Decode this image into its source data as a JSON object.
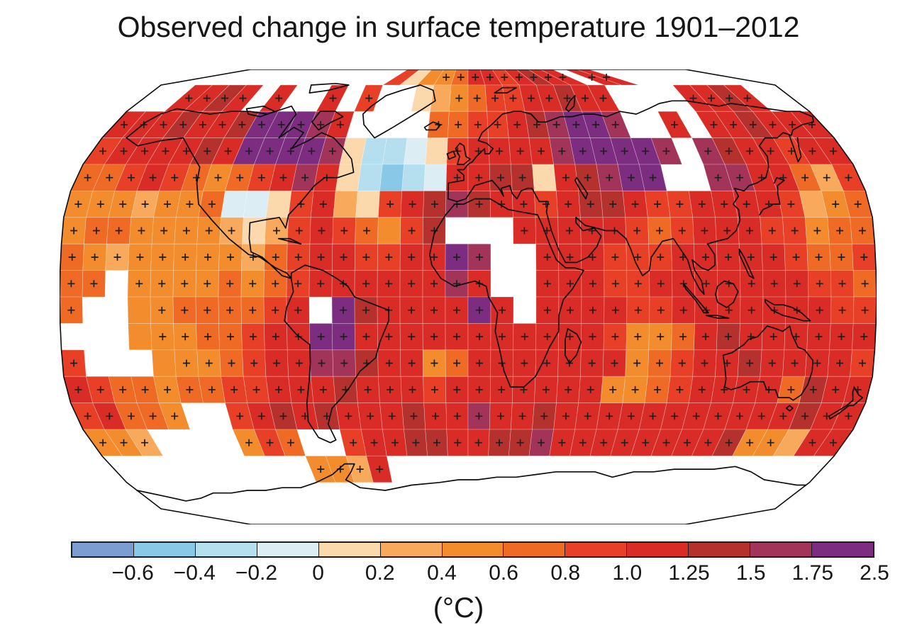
{
  "figure": {
    "title": "Observed change in surface temperature 1901–2012",
    "unit_label": "(°C)"
  },
  "colorbar": {
    "tick_labels": [
      "−0.6",
      "−0.4",
      "−0.2",
      "0",
      "0.2",
      "0.4",
      "0.6",
      "0.8",
      "1.0",
      "1.25",
      "1.5",
      "1.75",
      "2.5"
    ],
    "segment_colors": [
      "#7b9dd1",
      "#8ac8e8",
      "#b5dfee",
      "#dcedf4",
      "#fbd9ac",
      "#f8a95b",
      "#f28c2d",
      "#ef6a24",
      "#e84026",
      "#da2c26",
      "#b5312d",
      "#a23459",
      "#7c2d80"
    ],
    "border_color": "#1c1c1c"
  },
  "chart_data": {
    "type": "heatmap",
    "title": "Observed change in surface temperature 1901–2012",
    "unit": "°C",
    "projection": "robinson",
    "tick_values": [
      -0.6,
      -0.4,
      -0.2,
      0,
      0.2,
      0.4,
      0.6,
      0.8,
      1.0,
      1.25,
      1.5,
      1.75,
      2.5
    ],
    "bin_colors": [
      "#7b9dd1",
      "#8ac8e8",
      "#b5dfee",
      "#dcedf4",
      "#fbd9ac",
      "#f8a95b",
      "#f28c2d",
      "#ef6a24",
      "#e84026",
      "#da2c26",
      "#b5312d",
      "#a23459",
      "#7c2d80"
    ],
    "significance_marker": "+",
    "grid": {
      "legend": "rows from 90N to 90S, 10-degree cells from 180W to 180E; '.'=no data, hex digit 0-c = color bin index",
      "lon_start": -180,
      "lon_step": 10,
      "lat_start": 90,
      "lat_step": -10,
      "cells": [
        ".............846679989a99.99........",
        "..99a9.9..9.8..45678899a99....99a9..",
        "999a99acccb9....77889abccb..9.99a999",
        "89999a9ccccb4223489999bccccb.ba99899",
        "7789876789b94212399aa49abcc..bb99758",
        "6665667334895489aba9989aa98899998567",
        "6776666545898768a...9999987899988677",
        "76566666578998899cb..999888999998778",
        "77.66667678999999b9..999889999999887",
        "7..66777789.ca9999c9.999988999999988",
        "...66677899cc9999999999986679a999999",
        "8...6667899bba9967999999967899a99998",
        "987767788999a99989999999667899997a99",
        "89776..89a9a999a99b99a99999999999a99",
        "665....687..899aa99aab99999999a66599",
        "..........6659......................",
        "....................................",
        "...................................."
      ],
      "no_significance_cells": [
        [
          0,
          13
        ],
        [
          0,
          14
        ],
        [
          0,
          15
        ],
        [
          1,
          15
        ],
        [
          1,
          16
        ],
        [
          3,
          12
        ],
        [
          3,
          13
        ],
        [
          3,
          14
        ],
        [
          3,
          15
        ],
        [
          3,
          16
        ],
        [
          4,
          12
        ],
        [
          4,
          13
        ],
        [
          4,
          14
        ],
        [
          4,
          15
        ],
        [
          4,
          16
        ],
        [
          4,
          21
        ],
        [
          5,
          7
        ],
        [
          5,
          8
        ],
        [
          5,
          9
        ],
        [
          5,
          12
        ],
        [
          5,
          13
        ],
        [
          5,
          33
        ],
        [
          6,
          8
        ],
        [
          6,
          14
        ],
        [
          9,
          3
        ],
        [
          10,
          3
        ],
        [
          11,
          4
        ],
        [
          14,
          33
        ]
      ]
    }
  }
}
